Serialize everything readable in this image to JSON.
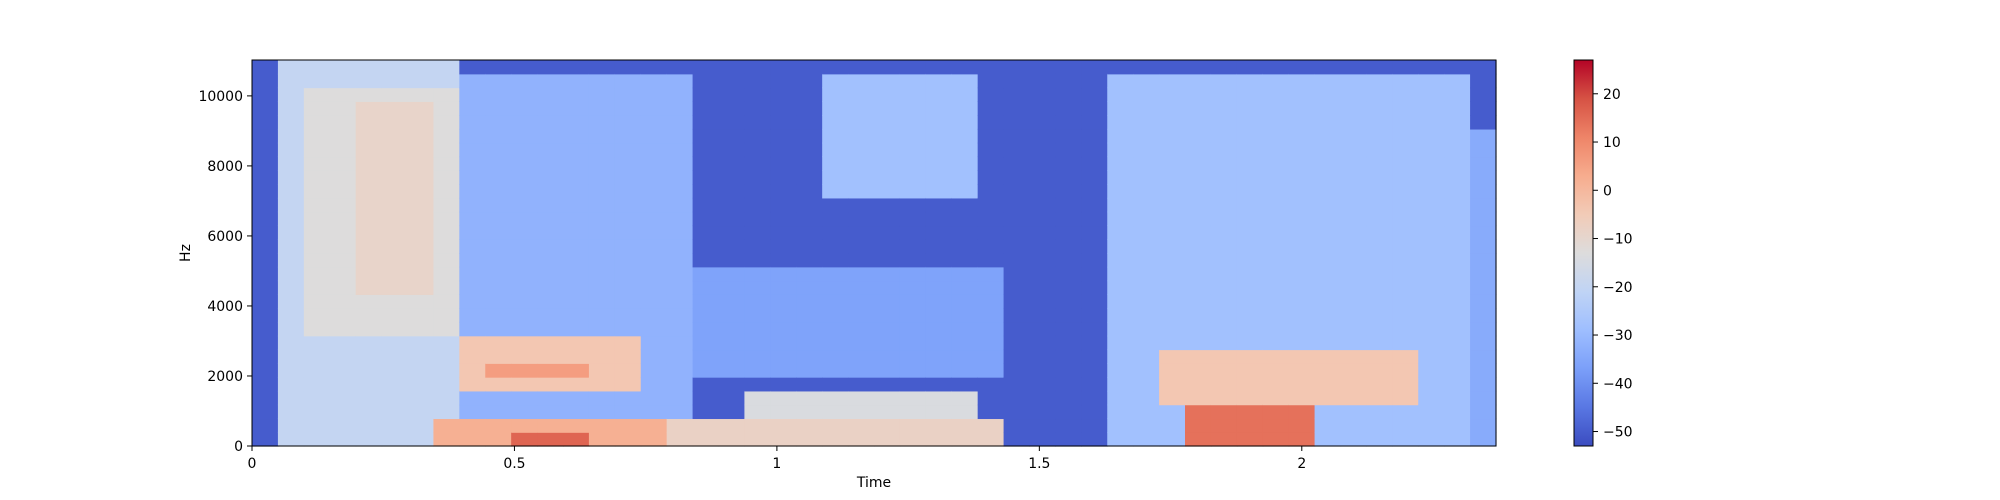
{
  "chart_data": {
    "type": "heatmap",
    "title": "",
    "xlabel": "Time",
    "ylabel": "Hz",
    "xlim": [
      0,
      2.37
    ],
    "ylim": [
      0,
      11025
    ],
    "x_ticks": [
      0,
      0.5,
      1,
      1.5,
      2
    ],
    "x_tick_labels": [
      "0",
      "0.5",
      "1",
      "1.5",
      "2"
    ],
    "y_ticks": [
      0,
      2000,
      4000,
      6000,
      8000,
      10000
    ],
    "y_tick_labels": [
      "0",
      "2000",
      "4000",
      "6000",
      "8000",
      "10000"
    ],
    "colorbar": {
      "min": -53,
      "max": 27,
      "ticks": [
        -50,
        -40,
        -30,
        -20,
        -10,
        0,
        10,
        20
      ],
      "tick_labels": [
        "−50",
        "−40",
        "−30",
        "−20",
        "−10",
        "0",
        "10",
        "20"
      ],
      "colormap": "coolwarm"
    },
    "colormap_stops": [
      "#3b4cc0",
      "#5977e3",
      "#7b9ff9",
      "#9ebeff",
      "#c0d4f5",
      "#dddcdc",
      "#f2cbb7",
      "#f7ac8e",
      "#ee8468",
      "#d65244",
      "#b40426"
    ],
    "grid": false,
    "time_bins": 48,
    "freq_bins": 28,
    "base_level_db": -50,
    "regions": [
      {
        "t": [
          0.03,
          0.39
        ],
        "f": [
          0,
          10900
        ],
        "db": -20
      },
      {
        "t": [
          0.12,
          0.38
        ],
        "f": [
          3200,
          10400
        ],
        "db": -13
      },
      {
        "t": [
          0.2,
          0.36
        ],
        "f": [
          4500,
          9800
        ],
        "db": -9
      },
      {
        "t": [
          0.38,
          0.82
        ],
        "f": [
          0,
          10500
        ],
        "db": -32
      },
      {
        "t": [
          0.4,
          0.72
        ],
        "f": [
          1500,
          3000
        ],
        "db": -4
      },
      {
        "t": [
          0.45,
          0.65
        ],
        "f": [
          1800,
          2500
        ],
        "db": 6
      },
      {
        "t": [
          0.36,
          0.78
        ],
        "f": [
          0,
          700
        ],
        "db": 2
      },
      {
        "t": [
          0.5,
          0.65
        ],
        "f": [
          0,
          450
        ],
        "db": 16
      },
      {
        "t": [
          0.78,
          1.45
        ],
        "f": [
          0,
          900
        ],
        "db": -8
      },
      {
        "t": [
          0.95,
          1.4
        ],
        "f": [
          300,
          1500
        ],
        "db": -14
      },
      {
        "t": [
          1.08,
          1.4
        ],
        "f": [
          7000,
          10500
        ],
        "db": -28
      },
      {
        "t": [
          0.8,
          1.45
        ],
        "f": [
          2000,
          5000
        ],
        "db": -36
      },
      {
        "t": [
          1.65,
          2.3
        ],
        "f": [
          0,
          10600
        ],
        "db": -28
      },
      {
        "t": [
          1.72,
          2.22
        ],
        "f": [
          1000,
          2800
        ],
        "db": -4
      },
      {
        "t": [
          1.8,
          2.0
        ],
        "f": [
          0,
          1100
        ],
        "db": 14
      },
      {
        "t": [
          2.1,
          2.37
        ],
        "f": [
          0,
          9000
        ],
        "db": -34
      }
    ]
  }
}
